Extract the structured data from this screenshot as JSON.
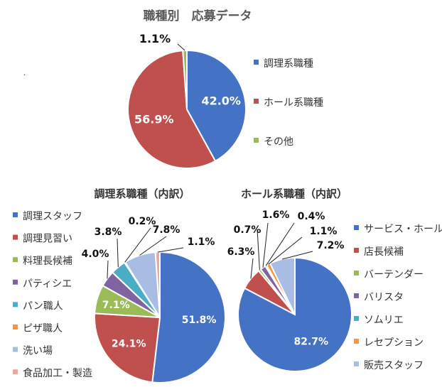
{
  "chart_data": [
    {
      "type": "pie",
      "title": "職種別　応募データ",
      "categories": [
        "調理系職種",
        "ホール系職種",
        "その他"
      ],
      "values": [
        42.0,
        56.9,
        1.1
      ],
      "labels": [
        "42.0%",
        "56.9%",
        "1.1%"
      ],
      "colors": [
        "#4472C4",
        "#C0504D",
        "#9BBB59"
      ],
      "legend": "right"
    },
    {
      "type": "pie",
      "title": "調理系職種（内訳）",
      "categories": [
        "調理スタッフ",
        "調理見習い",
        "料理長候補",
        "パティシエ",
        "パン職人",
        "ピザ職人",
        "洗い場",
        "食品加工・製造"
      ],
      "values": [
        51.8,
        24.1,
        7.1,
        4.0,
        3.8,
        0.2,
        7.8,
        1.1
      ],
      "labels": [
        "51.8%",
        "24.1%",
        "7.1%",
        "4.0%",
        "3.8%",
        "0.2%",
        "7.8%",
        "1.1%"
      ],
      "colors": [
        "#4472C4",
        "#C0504D",
        "#9BBB59",
        "#8064A2",
        "#4BACC6",
        "#F79646",
        "#A9BCE3",
        "#E6A9A8"
      ],
      "legend": "left"
    },
    {
      "type": "pie",
      "title": "ホール系職種（内訳）",
      "categories": [
        "サービス・ホール",
        "店長候補",
        "バーテンダー",
        "バリスタ",
        "ソムリエ",
        "レセプション",
        "販売スタッフ"
      ],
      "values": [
        82.7,
        6.3,
        0.7,
        1.6,
        0.4,
        1.1,
        7.2
      ],
      "labels": [
        "82.7%",
        "6.3%",
        "0.7%",
        "1.6%",
        "0.4%",
        "1.1%",
        "7.2%"
      ],
      "colors": [
        "#4472C4",
        "#C0504D",
        "#9BBB59",
        "#8064A2",
        "#4BACC6",
        "#F79646",
        "#A9BCE3"
      ],
      "legend": "right"
    }
  ],
  "misc": {
    "stray_mark": "."
  }
}
